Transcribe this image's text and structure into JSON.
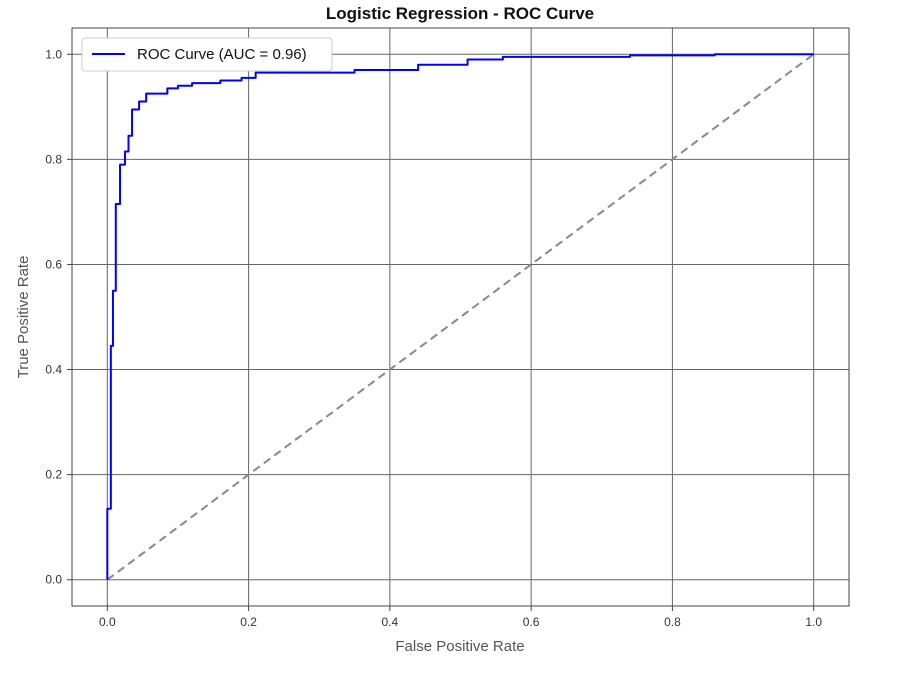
{
  "chart_data": {
    "type": "line",
    "title": "Logistic Regression - ROC Curve",
    "xlabel": "False Positive Rate",
    "ylabel": "True Positive Rate",
    "xlim": [
      -0.05,
      1.05
    ],
    "ylim": [
      -0.05,
      1.05
    ],
    "xticks": [
      0.0,
      0.2,
      0.4,
      0.6,
      0.8,
      1.0
    ],
    "yticks": [
      0.0,
      0.2,
      0.4,
      0.6,
      0.8,
      1.0
    ],
    "xtick_labels": [
      "0.0",
      "0.2",
      "0.4",
      "0.6",
      "0.8",
      "1.0"
    ],
    "ytick_labels": [
      "0.0",
      "0.2",
      "0.4",
      "0.6",
      "0.8",
      "1.0"
    ],
    "grid": true,
    "legend_position": "top-left",
    "series": [
      {
        "name": "ROC Curve (AUC = 0.96)",
        "color": "#0000ff",
        "style": "solid",
        "x": [
          0.0,
          0.0,
          0.005,
          0.005,
          0.008,
          0.008,
          0.012,
          0.012,
          0.018,
          0.018,
          0.025,
          0.025,
          0.03,
          0.03,
          0.035,
          0.035,
          0.045,
          0.045,
          0.055,
          0.055,
          0.085,
          0.085,
          0.1,
          0.1,
          0.12,
          0.12,
          0.16,
          0.16,
          0.19,
          0.19,
          0.21,
          0.21,
          0.35,
          0.35,
          0.44,
          0.44,
          0.51,
          0.51,
          0.56,
          0.56,
          0.74,
          0.74,
          0.86,
          0.86,
          1.0
        ],
        "y": [
          0.0,
          0.135,
          0.135,
          0.445,
          0.445,
          0.55,
          0.55,
          0.715,
          0.715,
          0.79,
          0.79,
          0.815,
          0.815,
          0.845,
          0.845,
          0.895,
          0.895,
          0.91,
          0.91,
          0.925,
          0.925,
          0.935,
          0.935,
          0.94,
          0.94,
          0.945,
          0.945,
          0.95,
          0.95,
          0.955,
          0.955,
          0.965,
          0.965,
          0.97,
          0.97,
          0.98,
          0.98,
          0.99,
          0.99,
          0.995,
          0.995,
          0.998,
          0.998,
          1.0,
          1.0
        ]
      },
      {
        "name": "",
        "color": "#888888",
        "style": "dashed",
        "x": [
          0.0,
          1.0
        ],
        "y": [
          0.0,
          1.0
        ]
      }
    ]
  }
}
